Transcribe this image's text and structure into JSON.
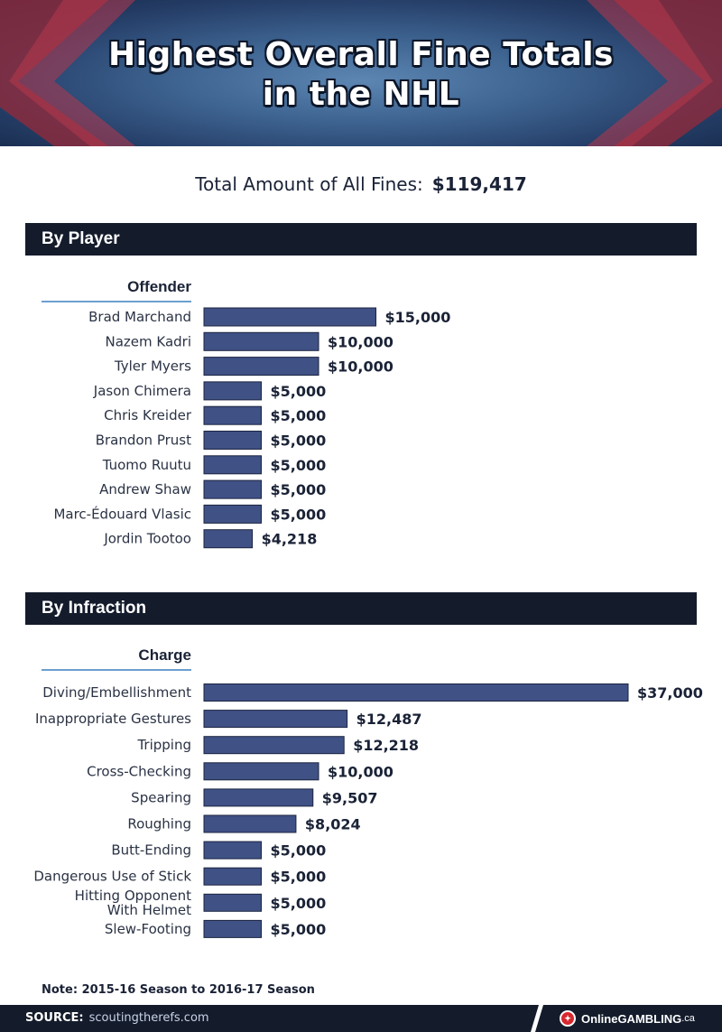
{
  "header": {
    "title_line1": "Highest Overall Fine Totals",
    "title_line2": "in the NHL"
  },
  "summary": {
    "label": "Total Amount of All Fines:",
    "value": "$119,417"
  },
  "sections": {
    "player": {
      "title": "By Player",
      "column_header": "Offender"
    },
    "infraction": {
      "title": "By Infraction",
      "column_header": "Charge"
    }
  },
  "note": "Note: 2015-16 Season to 2016-17 Season",
  "footer": {
    "source_label": "SOURCE:",
    "source_value": "scoutingtherefs.com",
    "brand": "OnlineGAMBLING",
    "brand_suffix": ".ca"
  },
  "colors": {
    "bar": "#3f5185",
    "header_bar": "#141c2c",
    "accent_line": "#6b9fcf"
  },
  "chart_data": [
    {
      "type": "bar",
      "orientation": "horizontal",
      "title": "By Player",
      "category_header": "Offender",
      "categories": [
        "Brad Marchand",
        "Nazem Kadri",
        "Tyler Myers",
        "Jason Chimera",
        "Chris Kreider",
        "Brandon Prust",
        "Tuomo Ruutu",
        "Andrew Shaw",
        "Marc-Édouard Vlasic",
        "Jordin Tootoo"
      ],
      "values": [
        15000,
        10000,
        10000,
        5000,
        5000,
        5000,
        5000,
        5000,
        5000,
        4218
      ],
      "value_labels": [
        "$15,000",
        "$10,000",
        "$10,000",
        "$5,000",
        "$5,000",
        "$5,000",
        "$5,000",
        "$5,000",
        "$5,000",
        "$4,218"
      ],
      "xlim": [
        0,
        37000
      ]
    },
    {
      "type": "bar",
      "orientation": "horizontal",
      "title": "By Infraction",
      "category_header": "Charge",
      "categories": [
        "Diving/Embellishment",
        "Inappropriate Gestures",
        "Tripping",
        "Cross-Checking",
        "Spearing",
        "Roughing",
        "Butt-Ending",
        "Dangerous Use of Stick",
        "Hitting Opponent With Helmet",
        "Slew-Footing"
      ],
      "values": [
        37000,
        12487,
        12218,
        10000,
        9507,
        8024,
        5000,
        5000,
        5000,
        5000
      ],
      "value_labels": [
        "$37,000",
        "$12,487",
        "$12,218",
        "$10,000",
        "$9,507",
        "$8,024",
        "$5,000",
        "$5,000",
        "$5,000",
        "$5,000"
      ],
      "xlim": [
        0,
        37000
      ]
    }
  ]
}
